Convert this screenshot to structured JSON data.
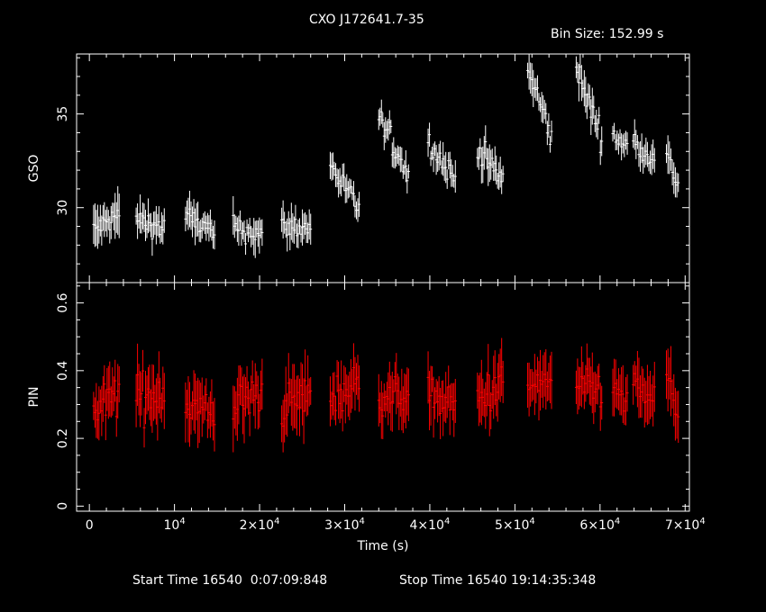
{
  "header": {
    "title": "CXO J172641.7-35",
    "bin_size": "Bin Size: 152.99 s"
  },
  "footer": {
    "start_time": "Start Time 16540  0:07:09:848",
    "stop_time": "Stop Time 16540 19:14:35:348"
  },
  "chart_data": [
    {
      "type": "scatter",
      "panel": "top",
      "ylabel": "GSO",
      "xlabel": "",
      "xlim": [
        -1500,
        70500
      ],
      "ylim": [
        26.0,
        38.2
      ],
      "yticks": [
        30,
        35
      ],
      "yticklabels": [
        "30",
        "35"
      ],
      "color": "#ffffff",
      "series": [
        {
          "segments": [
            {
              "x0": 500,
              "x1": 3500,
              "y0": 28.8,
              "y1": 29.6,
              "amp": 0.5,
              "err": 1.0
            },
            {
              "x0": 5500,
              "x1": 8800,
              "y0": 29.4,
              "y1": 28.9,
              "amp": 0.5,
              "err": 0.8
            },
            {
              "x0": 11300,
              "x1": 14700,
              "y0": 29.6,
              "y1": 28.6,
              "amp": 0.5,
              "err": 0.8
            },
            {
              "x0": 16900,
              "x1": 20300,
              "y0": 28.9,
              "y1": 28.6,
              "amp": 0.5,
              "err": 0.8
            },
            {
              "x0": 22600,
              "x1": 26000,
              "y0": 29.0,
              "y1": 28.9,
              "amp": 0.5,
              "err": 0.8
            },
            {
              "x0": 28300,
              "x1": 31700,
              "y0": 32.3,
              "y1": 29.9,
              "amp": 0.5,
              "err": 0.6
            },
            {
              "x0": 34000,
              "x1": 37500,
              "y0": 34.8,
              "y1": 31.8,
              "amp": 0.6,
              "err": 0.7
            },
            {
              "x0": 39800,
              "x1": 43000,
              "y0": 33.5,
              "y1": 31.5,
              "amp": 0.5,
              "err": 0.7
            },
            {
              "x0": 45600,
              "x1": 48600,
              "y0": 33.2,
              "y1": 31.4,
              "amp": 0.6,
              "err": 0.8
            },
            {
              "x0": 51500,
              "x1": 54300,
              "y0": 37.4,
              "y1": 33.8,
              "amp": 0.6,
              "err": 0.8
            },
            {
              "x0": 57200,
              "x1": 60200,
              "y0": 37.4,
              "y1": 33.8,
              "amp": 0.6,
              "err": 0.8
            },
            {
              "x0": 61500,
              "x1": 63200,
              "y0": 33.8,
              "y1": 33.3,
              "amp": 0.4,
              "err": 0.6
            },
            {
              "x0": 63900,
              "x1": 66400,
              "y0": 33.6,
              "y1": 32.6,
              "amp": 0.5,
              "err": 0.7
            },
            {
              "x0": 67800,
              "x1": 69200,
              "y0": 32.7,
              "y1": 31.3,
              "amp": 0.5,
              "err": 0.8
            }
          ]
        }
      ]
    },
    {
      "type": "scatter",
      "panel": "bottom",
      "ylabel": "PIN",
      "xlabel": "Time (s)",
      "xlim": [
        -1500,
        70500
      ],
      "ylim": [
        -0.015,
        0.66
      ],
      "yticks": [
        0,
        0.2,
        0.4,
        0.6
      ],
      "yticklabels": [
        "0",
        "0.2",
        "0.4",
        "0.6"
      ],
      "xticks": [
        0,
        10000,
        20000,
        30000,
        40000,
        50000,
        60000,
        70000
      ],
      "xticklabels": [
        {
          "base": "0",
          "exp": ""
        },
        {
          "base": "10",
          "exp": "4"
        },
        {
          "base": "2×10",
          "exp": "4"
        },
        {
          "base": "3×10",
          "exp": "4"
        },
        {
          "base": "4×10",
          "exp": "4"
        },
        {
          "base": "5×10",
          "exp": "4"
        },
        {
          "base": "6×10",
          "exp": "4"
        },
        {
          "base": "7×10",
          "exp": "4"
        }
      ],
      "color": "#ff0000",
      "series": [
        {
          "segments": [
            {
              "x0": 500,
              "x1": 3500,
              "y0": 0.27,
              "y1": 0.34,
              "amp": 0.05,
              "err": 0.07
            },
            {
              "x0": 5500,
              "x1": 8800,
              "y0": 0.32,
              "y1": 0.34,
              "amp": 0.06,
              "err": 0.08
            },
            {
              "x0": 11300,
              "x1": 14700,
              "y0": 0.3,
              "y1": 0.27,
              "amp": 0.05,
              "err": 0.08
            },
            {
              "x0": 16900,
              "x1": 20300,
              "y0": 0.3,
              "y1": 0.33,
              "amp": 0.05,
              "err": 0.08
            },
            {
              "x0": 22600,
              "x1": 26000,
              "y0": 0.29,
              "y1": 0.33,
              "amp": 0.05,
              "err": 0.08
            },
            {
              "x0": 28300,
              "x1": 31700,
              "y0": 0.32,
              "y1": 0.36,
              "amp": 0.05,
              "err": 0.07
            },
            {
              "x0": 34000,
              "x1": 37500,
              "y0": 0.32,
              "y1": 0.33,
              "amp": 0.04,
              "err": 0.07
            },
            {
              "x0": 39800,
              "x1": 43000,
              "y0": 0.33,
              "y1": 0.29,
              "amp": 0.04,
              "err": 0.07
            },
            {
              "x0": 45600,
              "x1": 48600,
              "y0": 0.31,
              "y1": 0.36,
              "amp": 0.05,
              "err": 0.08
            },
            {
              "x0": 51500,
              "x1": 54300,
              "y0": 0.35,
              "y1": 0.37,
              "amp": 0.04,
              "err": 0.07
            },
            {
              "x0": 57200,
              "x1": 60200,
              "y0": 0.35,
              "y1": 0.34,
              "amp": 0.04,
              "err": 0.07
            },
            {
              "x0": 61500,
              "x1": 63200,
              "y0": 0.34,
              "y1": 0.31,
              "amp": 0.04,
              "err": 0.07
            },
            {
              "x0": 63900,
              "x1": 66400,
              "y0": 0.35,
              "y1": 0.31,
              "amp": 0.04,
              "err": 0.07
            },
            {
              "x0": 67800,
              "x1": 69200,
              "y0": 0.39,
              "y1": 0.27,
              "amp": 0.04,
              "err": 0.08
            }
          ]
        }
      ]
    }
  ]
}
